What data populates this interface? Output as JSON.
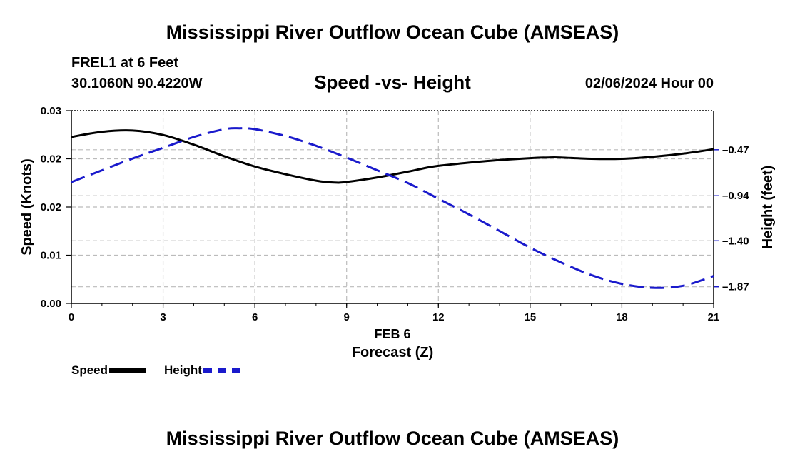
{
  "header": {
    "title": "Mississippi River Outflow Ocean Cube (AMSEAS)",
    "station": "FREL1 at 6 Feet",
    "coords": "30.1060N  90.4220W",
    "subtitle": "Speed -vs- Height",
    "datetime": "02/06/2024 Hour 00"
  },
  "footer": {
    "title": "Mississippi River Outflow Ocean Cube (AMSEAS)"
  },
  "colors": {
    "speed": "#000000",
    "height": "#1a1acc",
    "grid": "#bbbbbb"
  },
  "chart_data": {
    "type": "line",
    "title": "Speed -vs- Height",
    "xlabel": "Forecast (Z)",
    "xlabel_date": "FEB 6",
    "ylabel_left": "Speed (Knots)",
    "ylabel_right": "Height (feet)",
    "xlim": [
      0,
      21
    ],
    "x_ticks": [
      0,
      3,
      6,
      9,
      12,
      15,
      18,
      21
    ],
    "x_tick_labels": [
      "0",
      "3",
      "6",
      "9",
      "12",
      "15",
      "18",
      "21"
    ],
    "ylim_left": [
      0,
      0.03
    ],
    "y_left_ticks": [
      0,
      0.0075,
      0.015,
      0.0225,
      0.03
    ],
    "y_left_tick_labels": [
      "0.00",
      "0.01",
      "0.02",
      "0.02",
      "0.03"
    ],
    "ylim_right": [
      -2.04,
      -0.07
    ],
    "y_right_ticks": [
      -0.47,
      -0.94,
      -1.4,
      -1.87
    ],
    "y_right_tick_labels": [
      "-0.47",
      "-0.94",
      "-1.40",
      "-1.87"
    ],
    "grid": true,
    "legend": [
      "Speed",
      "Height"
    ],
    "series": [
      {
        "name": "Speed",
        "axis": "left",
        "style": "solid",
        "x": [
          0,
          1,
          2,
          3,
          4,
          5,
          6,
          7,
          8,
          8.6,
          9,
          10,
          11,
          11.6,
          12,
          13,
          14,
          15,
          15.6,
          16,
          17,
          18,
          19,
          20,
          21
        ],
        "values": [
          0.0259,
          0.0267,
          0.0269,
          0.0262,
          0.0247,
          0.0229,
          0.0213,
          0.0201,
          0.0191,
          0.0188,
          0.0189,
          0.0196,
          0.0205,
          0.0211,
          0.0214,
          0.0219,
          0.0223,
          0.0226,
          0.0227,
          0.0227,
          0.0225,
          0.0225,
          0.0228,
          0.0233,
          0.024
        ]
      },
      {
        "name": "Height",
        "axis": "right",
        "style": "dashed",
        "x": [
          0,
          1,
          2,
          3,
          4,
          5,
          5.5,
          6,
          7,
          8,
          9,
          10,
          11,
          12,
          13,
          14,
          15,
          16,
          17,
          18,
          19,
          20,
          21
        ],
        "values": [
          -0.8,
          -0.68,
          -0.56,
          -0.45,
          -0.34,
          -0.26,
          -0.25,
          -0.26,
          -0.33,
          -0.43,
          -0.55,
          -0.68,
          -0.81,
          -0.97,
          -1.13,
          -1.3,
          -1.47,
          -1.62,
          -1.75,
          -1.84,
          -1.88,
          -1.86,
          -1.76
        ]
      }
    ]
  }
}
